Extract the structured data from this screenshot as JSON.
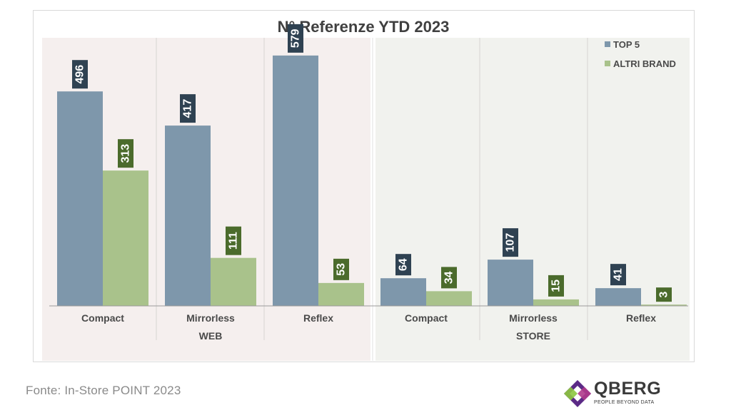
{
  "chart_data": {
    "type": "bar",
    "title": "N° Referenze YTD 2023",
    "groups": [
      {
        "label": "WEB",
        "categories": [
          "Compact",
          "Mirrorless",
          "Reflex"
        ]
      },
      {
        "label": "STORE",
        "categories": [
          "Compact",
          "Mirrorless",
          "Reflex"
        ]
      }
    ],
    "series": [
      {
        "name": "TOP 5",
        "color": "#7e97ab",
        "label_color": "#2f4252",
        "values": [
          496,
          417,
          579,
          64,
          107,
          41
        ]
      },
      {
        "name": "ALTRI BRAND",
        "color": "#a9c28b",
        "label_color": "#4b6b2c",
        "values": [
          313,
          111,
          53,
          34,
          15,
          3
        ]
      }
    ],
    "ylim": [
      0,
      620
    ],
    "legend": "top-right",
    "group_backgrounds": {
      "WEB": "#f5efee",
      "STORE": "#f1f2ee"
    }
  },
  "footer": {
    "source": "Fonte: In-Store POINT 2023"
  },
  "logo": {
    "name": "QBERG",
    "tagline": "PEOPLE BEYOND DATA"
  }
}
